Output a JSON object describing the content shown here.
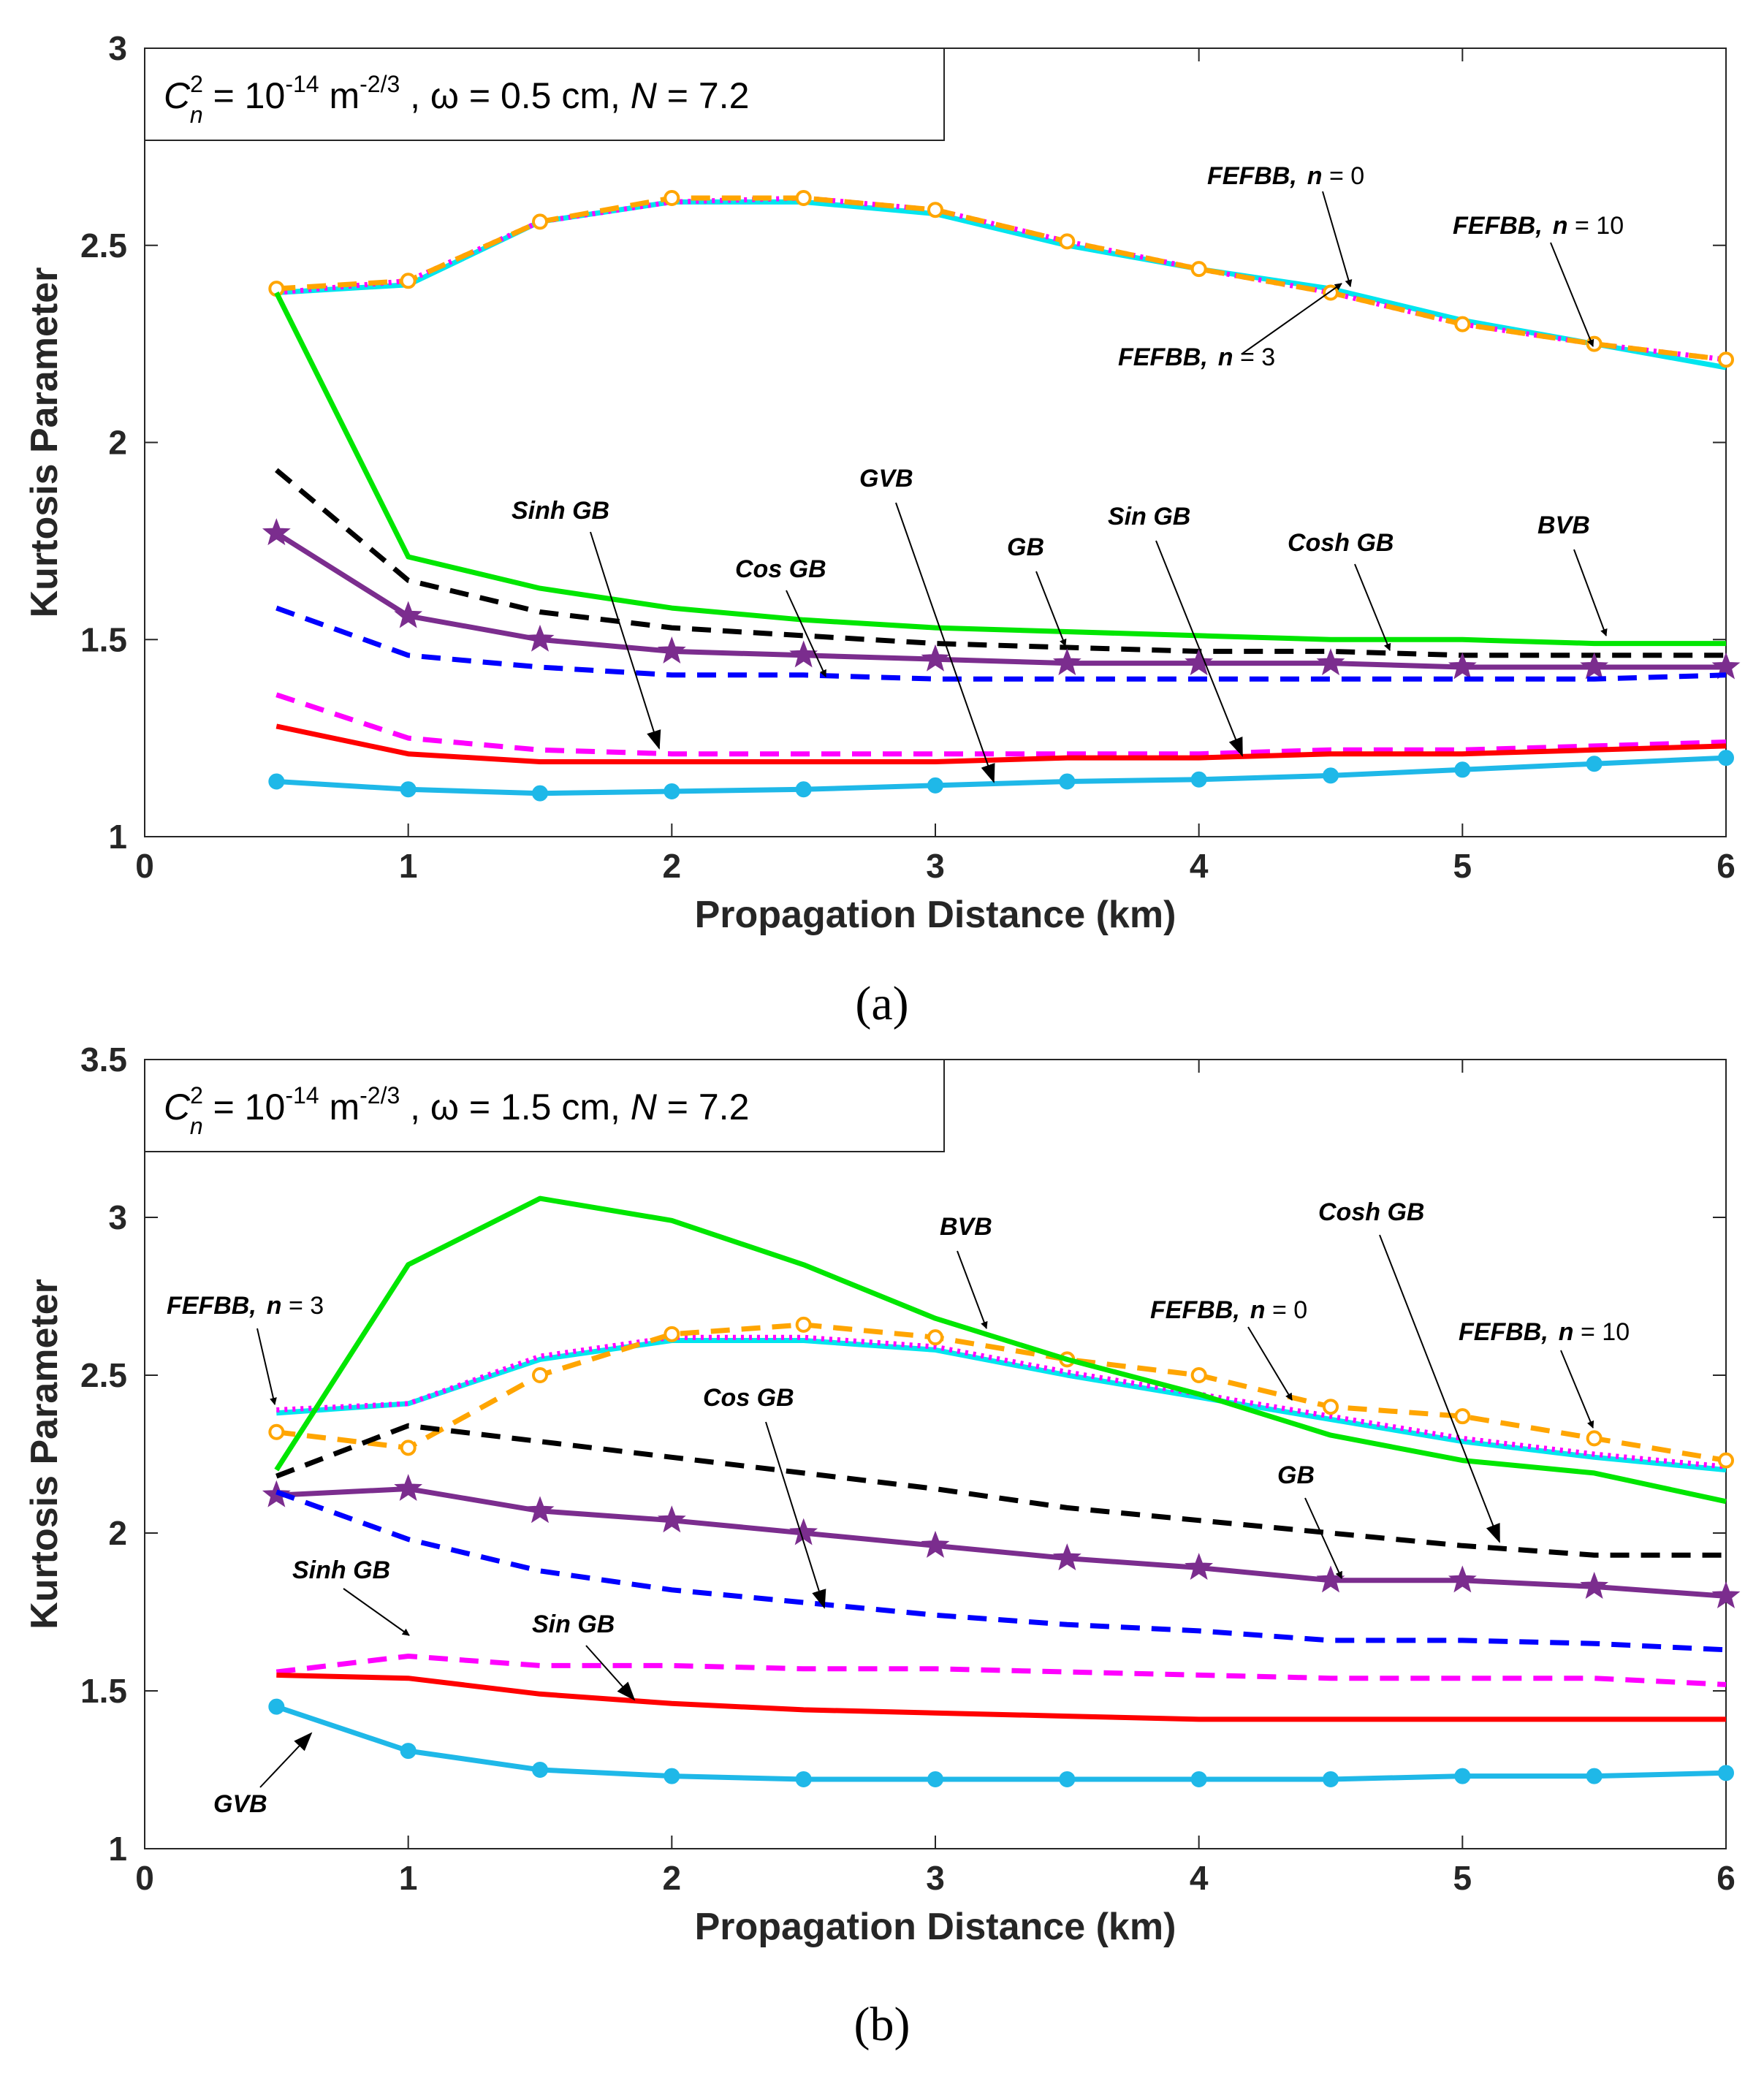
{
  "chart_data": [
    {
      "type": "line",
      "panel_label": "(a)",
      "xlabel": "Propagation Distance (km)",
      "ylabel": "Kurtosis Parameter",
      "xlim": [
        0,
        6
      ],
      "ylim": [
        1,
        3
      ],
      "xticks": [
        "0",
        "1",
        "2",
        "3",
        "4",
        "5",
        "6"
      ],
      "yticks": [
        "1",
        "1.5",
        "2",
        "2.5",
        "3"
      ],
      "grid": false,
      "legend_box": {
        "c": "C",
        "n": "n",
        "sup2": "2",
        "eq1": " = 10",
        "exp1": "-14",
        "unit": " m",
        "exp2": "-2/3",
        "rest1": " ,  ω = 0.5 cm,  ",
        "nvar": "N",
        "rest2": " = 7.2"
      },
      "x": [
        0.5,
        1,
        1.5,
        2,
        2.5,
        3,
        3.5,
        4,
        4.5,
        5,
        5.5,
        6
      ],
      "series": [
        {
          "name": "FEFBB, n = 0",
          "color": "#00e5ee",
          "style": "solid",
          "marker": "",
          "values": [
            2.38,
            2.4,
            2.56,
            2.61,
            2.61,
            2.58,
            2.5,
            2.44,
            2.39,
            2.31,
            2.25,
            2.19
          ]
        },
        {
          "name": "FEFBB, n = 3",
          "color": "#ff00ff",
          "style": "dotted",
          "marker": "",
          "values": [
            2.38,
            2.41,
            2.56,
            2.61,
            2.62,
            2.59,
            2.51,
            2.44,
            2.38,
            2.3,
            2.25,
            2.21
          ]
        },
        {
          "name": "FEFBB, n = 10",
          "color": "#ffa500",
          "style": "dashed",
          "marker": "circle-open",
          "values": [
            2.39,
            2.41,
            2.56,
            2.62,
            2.62,
            2.59,
            2.51,
            2.44,
            2.38,
            2.3,
            2.25,
            2.21
          ]
        },
        {
          "name": "BVB",
          "color": "#00e600",
          "style": "solid",
          "marker": "",
          "values": [
            2.38,
            1.71,
            1.63,
            1.58,
            1.55,
            1.53,
            1.52,
            1.51,
            1.5,
            1.5,
            1.49,
            1.49
          ]
        },
        {
          "name": "Cosh GB",
          "color": "#000000",
          "style": "dashed",
          "marker": "",
          "values": [
            1.93,
            1.65,
            1.57,
            1.53,
            1.51,
            1.49,
            1.48,
            1.47,
            1.47,
            1.46,
            1.46,
            1.46
          ]
        },
        {
          "name": "GB",
          "color": "#7b2d8e",
          "style": "solid",
          "marker": "star",
          "values": [
            1.77,
            1.56,
            1.5,
            1.47,
            1.46,
            1.45,
            1.44,
            1.44,
            1.44,
            1.43,
            1.43,
            1.43
          ]
        },
        {
          "name": "Cos GB",
          "color": "#0000ff",
          "style": "dashed",
          "marker": "",
          "values": [
            1.58,
            1.46,
            1.43,
            1.41,
            1.41,
            1.4,
            1.4,
            1.4,
            1.4,
            1.4,
            1.4,
            1.41
          ]
        },
        {
          "name": "Sinh GB",
          "color": "#ff00ff",
          "style": "dashed",
          "marker": "",
          "values": [
            1.36,
            1.25,
            1.22,
            1.21,
            1.21,
            1.21,
            1.21,
            1.21,
            1.22,
            1.22,
            1.23,
            1.24
          ]
        },
        {
          "name": "Sin GB",
          "color": "#ff0000",
          "style": "solid",
          "marker": "",
          "values": [
            1.28,
            1.21,
            1.19,
            1.19,
            1.19,
            1.19,
            1.2,
            1.2,
            1.21,
            1.21,
            1.22,
            1.23
          ]
        },
        {
          "name": "GVB",
          "color": "#1fb8e8",
          "style": "solid",
          "marker": "circle",
          "values": [
            1.14,
            1.12,
            1.11,
            1.115,
            1.12,
            1.13,
            1.14,
            1.145,
            1.155,
            1.17,
            1.185,
            1.2
          ]
        }
      ],
      "annotations": [
        {
          "text": "FEFBB,",
          "nlabel": "n",
          "value": " = 0"
        },
        {
          "text": "FEFBB,",
          "nlabel": "n",
          "value": " = 10"
        },
        {
          "text": "FEFBB,",
          "nlabel": "n",
          "value": " = 3"
        },
        {
          "text": "Sinh GB"
        },
        {
          "text": "GVB"
        },
        {
          "text": "Cos GB"
        },
        {
          "text": "GB"
        },
        {
          "text": "Sin GB"
        },
        {
          "text": "Cosh GB"
        },
        {
          "text": "BVB"
        }
      ]
    },
    {
      "type": "line",
      "panel_label": "(b)",
      "xlabel": "Propagation Distance (km)",
      "ylabel": "Kurtosis Parameter",
      "xlim": [
        0,
        6
      ],
      "ylim": [
        1,
        3.5
      ],
      "xticks": [
        "0",
        "1",
        "2",
        "3",
        "4",
        "5",
        "6"
      ],
      "yticks": [
        "1",
        "1.5",
        "2",
        "2.5",
        "3",
        "3.5"
      ],
      "grid": false,
      "legend_box": {
        "c": "C",
        "n": "n",
        "sup2": "2",
        "eq1": " = 10",
        "exp1": "-14",
        "unit": " m",
        "exp2": "-2/3",
        "rest1": " ,  ω = 1.5 cm,  ",
        "nvar": "N",
        "rest2": " = 7.2"
      },
      "x": [
        0.5,
        1,
        1.5,
        2,
        2.5,
        3,
        3.5,
        4,
        4.5,
        5,
        5.5,
        6
      ],
      "series": [
        {
          "name": "FEFBB, n = 0",
          "color": "#00e5ee",
          "style": "solid",
          "marker": "",
          "values": [
            2.38,
            2.41,
            2.55,
            2.61,
            2.61,
            2.58,
            2.5,
            2.43,
            2.36,
            2.29,
            2.24,
            2.2
          ]
        },
        {
          "name": "FEFBB, n = 3",
          "color": "#ff00ff",
          "style": "dotted",
          "marker": "",
          "values": [
            2.39,
            2.41,
            2.56,
            2.62,
            2.62,
            2.59,
            2.51,
            2.44,
            2.37,
            2.3,
            2.25,
            2.21
          ]
        },
        {
          "name": "FEFBB, n = 10",
          "color": "#ffa500",
          "style": "dashed",
          "marker": "circle-open",
          "values": [
            2.32,
            2.27,
            2.5,
            2.63,
            2.66,
            2.62,
            2.55,
            2.5,
            2.4,
            2.37,
            2.3,
            2.23
          ]
        },
        {
          "name": "BVB",
          "color": "#00e600",
          "style": "solid",
          "marker": "",
          "values": [
            2.2,
            2.85,
            3.06,
            2.99,
            2.85,
            2.68,
            2.55,
            2.44,
            2.31,
            2.23,
            2.19,
            2.1
          ]
        },
        {
          "name": "Cosh GB",
          "color": "#000000",
          "style": "dashed",
          "marker": "",
          "values": [
            2.18,
            2.34,
            2.29,
            2.24,
            2.19,
            2.14,
            2.08,
            2.04,
            2.0,
            1.96,
            1.93,
            1.93
          ]
        },
        {
          "name": "GB",
          "color": "#7b2d8e",
          "style": "solid",
          "marker": "star",
          "values": [
            2.12,
            2.14,
            2.07,
            2.04,
            2.0,
            1.96,
            1.92,
            1.89,
            1.85,
            1.85,
            1.83,
            1.8
          ]
        },
        {
          "name": "Cos GB",
          "color": "#0000ff",
          "style": "dashed",
          "marker": "",
          "values": [
            2.13,
            1.98,
            1.88,
            1.82,
            1.78,
            1.74,
            1.71,
            1.69,
            1.66,
            1.66,
            1.65,
            1.63
          ]
        },
        {
          "name": "Sinh GB",
          "color": "#ff00ff",
          "style": "dashed",
          "marker": "",
          "values": [
            1.56,
            1.61,
            1.58,
            1.58,
            1.57,
            1.57,
            1.56,
            1.55,
            1.54,
            1.54,
            1.54,
            1.52
          ]
        },
        {
          "name": "Sin GB",
          "color": "#ff0000",
          "style": "solid",
          "marker": "",
          "values": [
            1.55,
            1.54,
            1.49,
            1.46,
            1.44,
            1.43,
            1.42,
            1.41,
            1.41,
            1.41,
            1.41,
            1.41
          ]
        },
        {
          "name": "GVB",
          "color": "#1fb8e8",
          "style": "solid",
          "marker": "circle",
          "values": [
            1.45,
            1.31,
            1.25,
            1.23,
            1.22,
            1.22,
            1.22,
            1.22,
            1.22,
            1.23,
            1.23,
            1.24
          ]
        }
      ],
      "annotations": [
        {
          "text": "FEFBB,",
          "nlabel": "n",
          "value": " = 3"
        },
        {
          "text": "BVB"
        },
        {
          "text": "Cosh GB"
        },
        {
          "text": "FEFBB,",
          "nlabel": "n",
          "value": " = 0"
        },
        {
          "text": "FEFBB,",
          "nlabel": "n",
          "value": " = 10"
        },
        {
          "text": "Cos GB"
        },
        {
          "text": "GB"
        },
        {
          "text": "Sinh GB"
        },
        {
          "text": "Sin GB"
        },
        {
          "text": "GVB"
        }
      ]
    }
  ]
}
